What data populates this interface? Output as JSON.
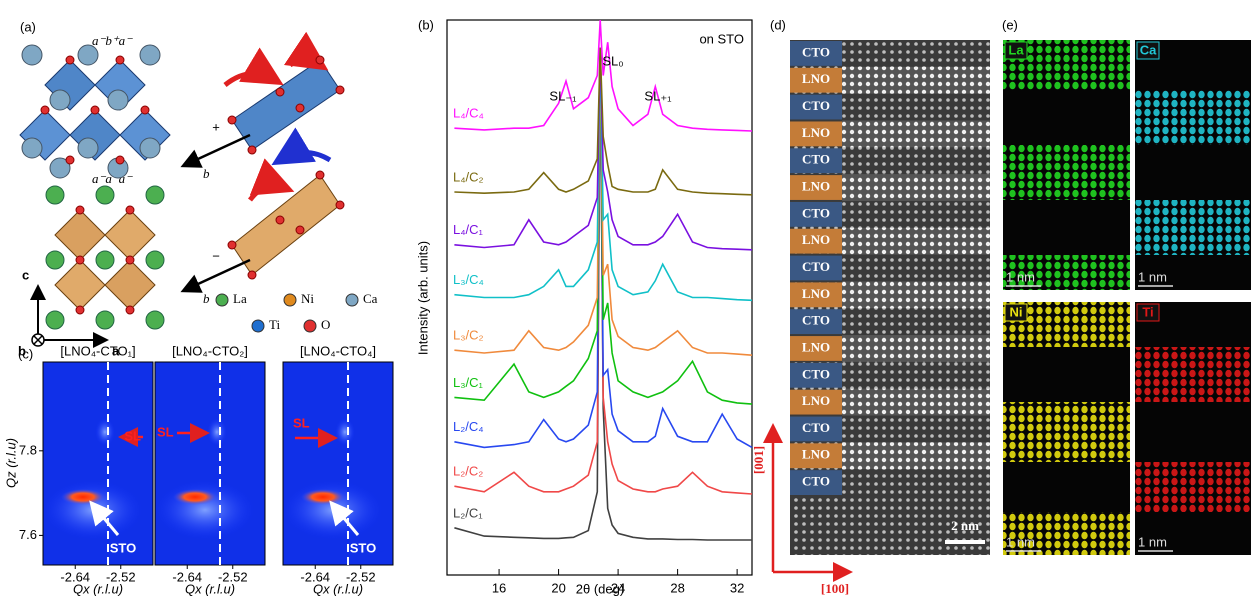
{
  "panel_a": {
    "label": "(a)",
    "tilt_top": "a⁻b⁺a⁻",
    "tilt_bottom": "a⁻a⁻a⁻",
    "sign_plus": "+",
    "sign_minus": "−",
    "axis_b_top": "b",
    "axis_b_bottom": "b",
    "axes": {
      "c": "c",
      "b": "b",
      "a": "a"
    },
    "legend": [
      {
        "name": "La",
        "color": "#4caf50"
      },
      {
        "name": "Ni",
        "color": "#e08a1e"
      },
      {
        "name": "Ca",
        "color": "#7fa7c4"
      },
      {
        "name": "Ti",
        "color": "#1f6fd0"
      },
      {
        "name": "O",
        "color": "#e03030"
      }
    ]
  },
  "chart_data": {
    "type": "line",
    "label": "(b)",
    "y_label": "Intensity (arb. units)",
    "x_label": "2θ (deg)",
    "annotations": {
      "substrate": "on STO",
      "sl_minus": "SL₋₁",
      "sl_zero": "SL₀",
      "sl_plus": "SL₊₁"
    },
    "xlim": [
      12.5,
      33
    ],
    "xticks": [
      16,
      20,
      24,
      28,
      32
    ],
    "ylim": [
      0,
      10
    ],
    "x": [
      13,
      15,
      17,
      18,
      19,
      20,
      20.5,
      21,
      22,
      22.6,
      22.8,
      23,
      23.3,
      23.6,
      24,
      25,
      26,
      26.5,
      27,
      28,
      29,
      30,
      31,
      32,
      33
    ],
    "series": [
      {
        "name": "L₂/C₁",
        "color": "#404040",
        "values": [
          0.85,
          0.7,
          0.68,
          0.67,
          0.66,
          0.66,
          0.67,
          0.68,
          0.8,
          1.5,
          9.5,
          3.0,
          1.2,
          0.9,
          0.75,
          0.68,
          0.65,
          0.65,
          0.65,
          0.64,
          0.64,
          0.63,
          0.63,
          0.63,
          0.63
        ]
      },
      {
        "name": "L₂/C₂",
        "color": "#f04848",
        "values": [
          1.6,
          1.5,
          1.85,
          1.6,
          1.5,
          1.5,
          1.55,
          1.6,
          1.8,
          2.4,
          9.5,
          3.2,
          2.4,
          2.0,
          1.7,
          1.55,
          1.5,
          1.5,
          1.55,
          1.6,
          1.85,
          1.6,
          1.5,
          1.48,
          1.46
        ]
      },
      {
        "name": "L₂/C₄",
        "color": "#2848f0",
        "values": [
          2.4,
          2.3,
          2.35,
          2.4,
          2.8,
          2.45,
          2.4,
          2.45,
          2.7,
          3.3,
          9.5,
          3.6,
          3.7,
          2.9,
          2.6,
          2.4,
          2.4,
          2.5,
          3.0,
          2.5,
          2.4,
          2.4,
          2.9,
          2.45,
          2.3
        ]
      },
      {
        "name": "L₃/C₁",
        "color": "#10c010",
        "values": [
          3.2,
          3.15,
          3.8,
          3.3,
          3.2,
          3.3,
          3.4,
          3.5,
          3.9,
          4.4,
          9.5,
          4.6,
          4.9,
          4.0,
          3.5,
          3.3,
          3.2,
          3.25,
          3.3,
          3.5,
          3.85,
          3.3,
          3.15,
          3.1,
          3.08
        ]
      },
      {
        "name": "L₃/C₂",
        "color": "#f08a3c",
        "values": [
          4.05,
          4.0,
          4.05,
          4.4,
          4.1,
          4.05,
          4.1,
          4.2,
          4.5,
          5.0,
          9.5,
          5.4,
          5.6,
          4.6,
          4.3,
          4.1,
          4.05,
          4.1,
          4.2,
          4.4,
          4.1,
          4.0,
          4.0,
          3.98,
          3.96
        ]
      },
      {
        "name": "L₃/C₄",
        "color": "#10c0c8",
        "values": [
          5.05,
          5.0,
          5.0,
          5.05,
          5.2,
          5.5,
          5.2,
          5.2,
          5.5,
          6.0,
          9.5,
          6.4,
          6.5,
          5.5,
          5.2,
          5.05,
          5.1,
          5.3,
          5.6,
          5.1,
          5.0,
          5.0,
          4.98,
          4.96,
          4.95
        ]
      },
      {
        "name": "L₄/C₁",
        "color": "#7a10e0",
        "values": [
          5.95,
          5.9,
          5.95,
          6.4,
          6.0,
          5.95,
          6.0,
          6.1,
          6.3,
          6.8,
          9.5,
          7.3,
          6.9,
          6.4,
          6.1,
          5.95,
          5.95,
          6.0,
          6.1,
          6.5,
          6.0,
          5.9,
          5.88,
          5.87,
          5.86
        ]
      },
      {
        "name": "L₄/C₂",
        "color": "#7a6a10",
        "values": [
          6.9,
          6.88,
          6.9,
          6.95,
          7.25,
          6.95,
          6.9,
          6.95,
          7.1,
          7.5,
          9.5,
          7.9,
          7.4,
          7.0,
          6.95,
          6.9,
          6.9,
          6.95,
          7.3,
          6.95,
          6.9,
          6.88,
          6.87,
          6.86,
          6.85
        ]
      },
      {
        "name": "L₄/C₄",
        "color": "#ff10ff",
        "values": [
          8.05,
          8.02,
          8.05,
          8.05,
          8.1,
          8.5,
          8.9,
          8.4,
          8.6,
          9.0,
          10.0,
          9.0,
          9.6,
          8.8,
          8.4,
          8.1,
          8.3,
          8.8,
          8.3,
          8.1,
          8.05,
          8.03,
          8.02,
          8.01,
          8.0
        ]
      }
    ]
  },
  "panel_c": {
    "label": "(c)",
    "y_label": "Qz (r.l.u)",
    "x_label": "Qx (r.l.u)",
    "xlim": [
      -2.725,
      -2.435
    ],
    "xticks": [
      -2.64,
      -2.52
    ],
    "ylim": [
      7.53,
      8.01
    ],
    "yticks": [
      7.8,
      7.6
    ],
    "maps": [
      {
        "title": "[LNO₄-CTO₁]",
        "sl": "SL",
        "sto": "STO"
      },
      {
        "title": "[LNO₄-CTO₂]",
        "sl": "SL"
      },
      {
        "title": "[LNO₄-CTO₄]",
        "sl": "SL",
        "sto": "STO"
      }
    ]
  },
  "panel_d": {
    "label": "(d)",
    "layers": [
      "CTO",
      "LNO",
      "CTO",
      "LNO",
      "CTO",
      "LNO",
      "CTO",
      "LNO",
      "CTO",
      "LNO",
      "CTO",
      "LNO",
      "CTO",
      "LNO",
      "CTO",
      "LNO",
      "CTO"
    ],
    "scale": "2 nm",
    "dir_vertical": "[001]",
    "dir_horizontal": "[100]"
  },
  "panel_e": {
    "label": "(e)",
    "maps": [
      {
        "element": "La",
        "color": "#22d822",
        "scale": "1 nm"
      },
      {
        "element": "Ca",
        "color": "#22c8d8",
        "scale": "1 nm"
      },
      {
        "element": "Ni",
        "color": "#e8e010",
        "scale": "1 nm"
      },
      {
        "element": "Ti",
        "color": "#e01818",
        "scale": "1 nm"
      }
    ]
  }
}
